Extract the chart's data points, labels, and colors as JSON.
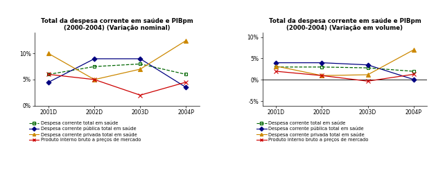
{
  "chart1": {
    "title": "Total da despesa corrente em saúde e PIBpm\n(2000-2004) (Variação nominal)",
    "xlabels": [
      "2001D",
      "2002D",
      "2003D",
      "2004P"
    ],
    "series": {
      "green": [
        6.0,
        7.5,
        8.0,
        6.0
      ],
      "blue": [
        4.5,
        9.0,
        9.0,
        3.5
      ],
      "yellow": [
        10.0,
        5.0,
        7.0,
        12.5
      ],
      "red": [
        6.0,
        5.0,
        2.0,
        4.5
      ]
    },
    "ylim": [
      0,
      14
    ],
    "yticks": [
      0,
      5,
      10
    ],
    "yticklabels": [
      "0%",
      "5%",
      "10%"
    ]
  },
  "chart2": {
    "title": "Total da despesa corrente em saúde e PIBpm\n(2000-2004) (Variação em volume)",
    "xlabels": [
      "2001D",
      "2002D",
      "2003D",
      "2004P"
    ],
    "series": {
      "green": [
        3.0,
        3.0,
        2.8,
        2.0
      ],
      "blue": [
        4.0,
        4.0,
        3.5,
        0.1
      ],
      "yellow": [
        3.2,
        1.0,
        1.2,
        7.0
      ],
      "red": [
        2.0,
        1.0,
        -0.3,
        1.3
      ]
    },
    "ylim": [
      -6,
      11
    ],
    "yticks": [
      -5,
      0,
      5,
      10
    ],
    "yticklabels": [
      "-5%",
      "0%",
      "5%",
      "10%"
    ]
  },
  "legend_labels": [
    "Despesa corrente total em saúde",
    "Despesa corrente pública total em saúde",
    "Despesa corrente privada total em saúde",
    "Produto interno bruto a preços de mercado"
  ],
  "colors": {
    "green": "#006600",
    "blue": "#000080",
    "yellow": "#CC8800",
    "red": "#CC0000"
  },
  "bg_color": "#ffffff"
}
